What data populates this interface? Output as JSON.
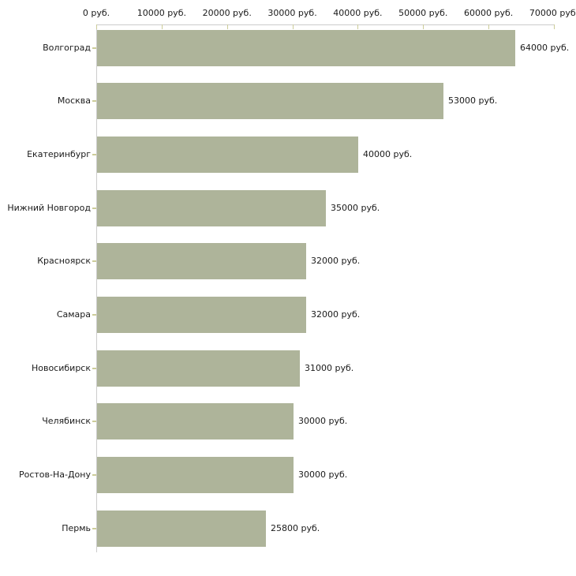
{
  "chart_data": {
    "type": "bar",
    "orientation": "horizontal",
    "title": "",
    "xlabel": "",
    "ylabel": "",
    "unit": "руб.",
    "grid": false,
    "legend": false,
    "xlim": [
      0,
      70000
    ],
    "x_ticks": [
      0,
      10000,
      20000,
      30000,
      40000,
      50000,
      60000,
      70000
    ],
    "x_tick_labels": [
      "0 руб.",
      "10000 руб.",
      "20000 руб.",
      "30000 руб.",
      "40000 руб.",
      "50000 руб.",
      "60000 руб.",
      "70000 руб."
    ],
    "categories": [
      "Волгоград",
      "Москва",
      "Екатеринбург",
      "Нижний Новгород",
      "Красноярск",
      "Самара",
      "Новосибирск",
      "Челябинск",
      "Ростов-На-Дону",
      "Пермь"
    ],
    "values": [
      64000,
      53000,
      40000,
      35000,
      32000,
      32000,
      31000,
      30000,
      30000,
      25800
    ],
    "value_labels": [
      "64000 руб.",
      "53000 руб.",
      "40000 руб.",
      "35000 руб.",
      "32000 руб.",
      "32000 руб.",
      "31000 руб.",
      "30000 руб.",
      "30000 руб.",
      "25800 руб."
    ],
    "colors": {
      "bar": "#aeb49a",
      "axis_line": "#cccccc",
      "tick_mark": "#cccc99",
      "text": "#1a1a1a",
      "background": "#ffffff"
    }
  }
}
